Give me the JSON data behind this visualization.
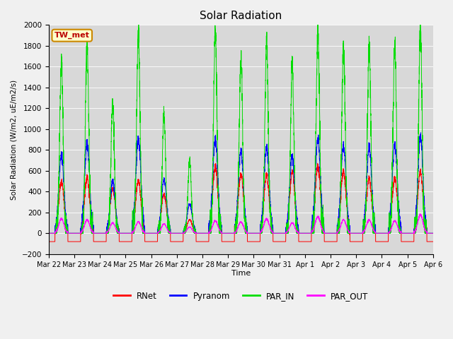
{
  "title": "Solar Radiation",
  "ylabel": "Solar Radiation (W/m2, uE/m2/s)",
  "xlabel": "Time",
  "ylim": [
    -200,
    2000
  ],
  "num_days": 15,
  "day_labels": [
    "Mar 22",
    "Mar 23",
    "Mar 24",
    "Mar 25",
    "Mar 26",
    "Mar 27",
    "Mar 28",
    "Mar 29",
    "Mar 30",
    "Mar 31",
    "Apr 1",
    "Apr 2",
    "Apr 3",
    "Apr 4",
    "Apr 5",
    "Apr 6"
  ],
  "station_label": "TW_met",
  "colors": {
    "RNet": "#ff0000",
    "Pyranom": "#0000ff",
    "PAR_IN": "#00dd00",
    "PAR_OUT": "#ff00ff"
  },
  "fig_bg": "#f0f0f0",
  "plot_bg": "#d8d8d8",
  "yticks": [
    -200,
    0,
    200,
    400,
    600,
    800,
    1000,
    1200,
    1400,
    1600,
    1800,
    2000
  ],
  "day_peaks_PAR_IN": [
    1640,
    1820,
    1250,
    1920,
    1160,
    700,
    1950,
    1700,
    1840,
    1620,
    1940,
    1820,
    1810,
    1820,
    1950
  ],
  "day_peaks_Pyranom": [
    750,
    860,
    500,
    900,
    510,
    280,
    900,
    790,
    820,
    740,
    900,
    840,
    830,
    840,
    920
  ],
  "day_peaks_RNet": [
    500,
    540,
    430,
    510,
    370,
    130,
    640,
    560,
    560,
    590,
    640,
    600,
    530,
    530,
    590
  ],
  "day_peaks_PAR_OUT": [
    140,
    130,
    100,
    110,
    90,
    60,
    120,
    110,
    140,
    100,
    160,
    130,
    130,
    120,
    180
  ],
  "night_RNet": -80,
  "pts_per_day": 288,
  "legend_entries": [
    "RNet",
    "Pyranom",
    "PAR_IN",
    "PAR_OUT"
  ]
}
